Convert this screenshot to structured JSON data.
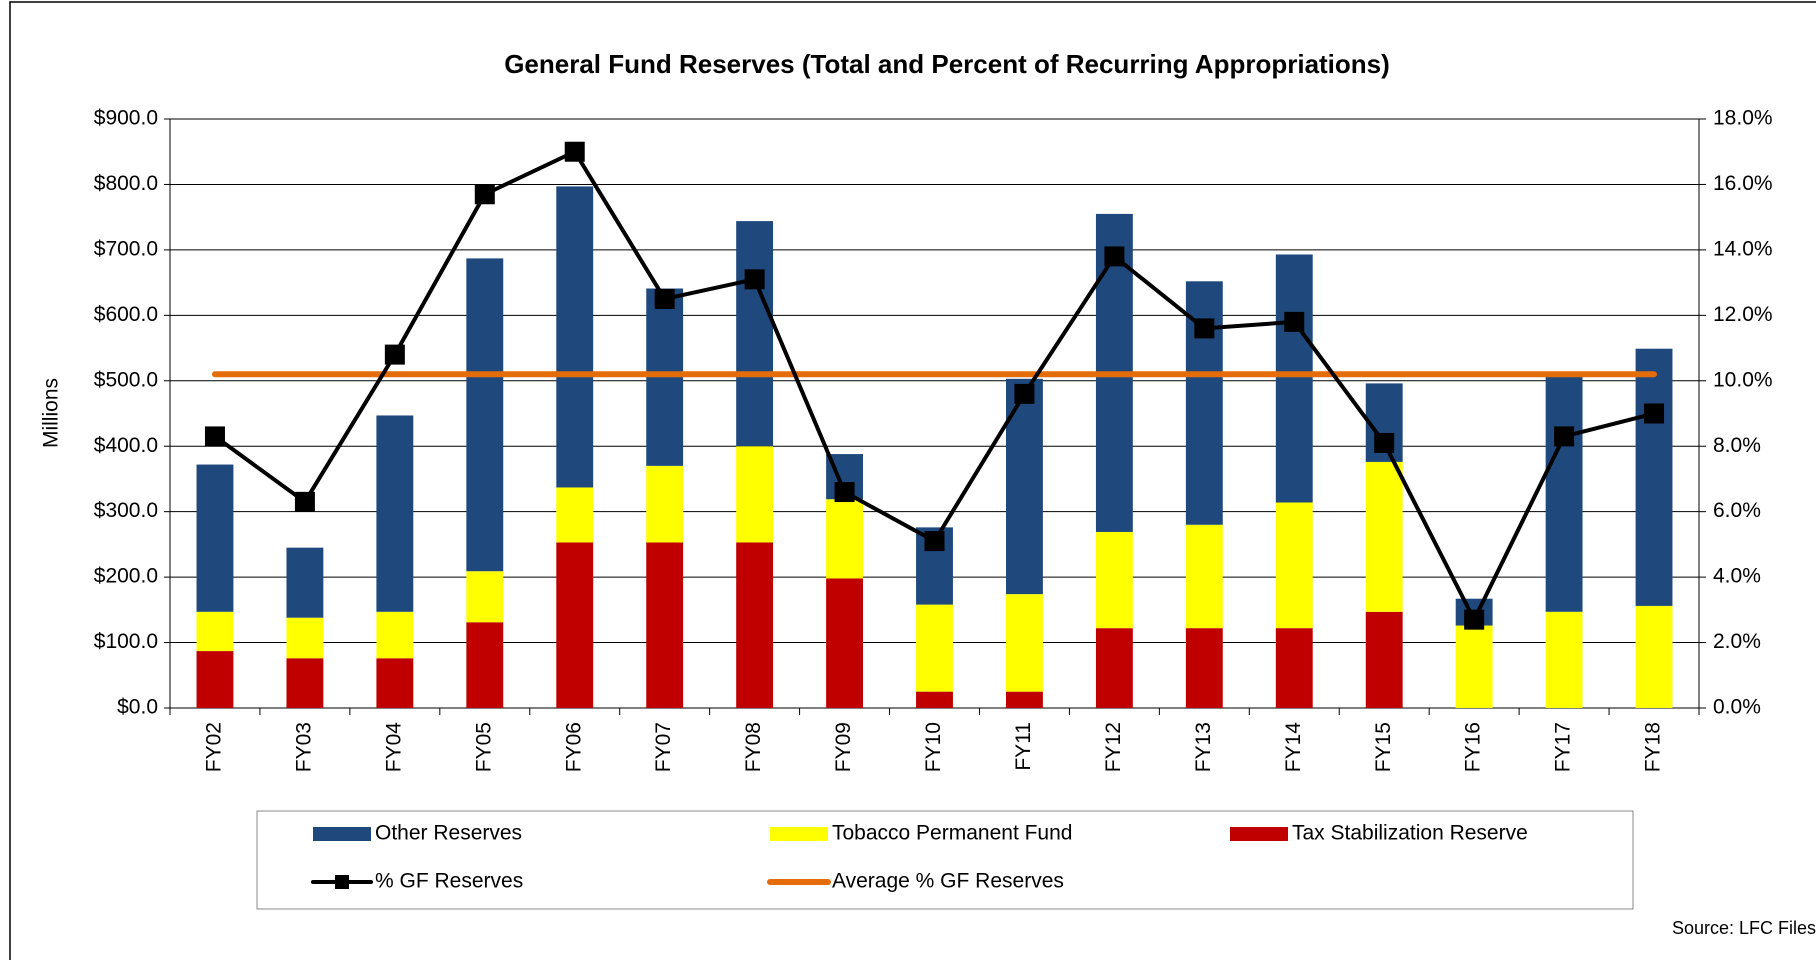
{
  "chart_data": {
    "type": "combo",
    "title": "General Fund Reserves (Total and Percent of Recurring Appropriations)",
    "y_label": "Millions",
    "source": "Source: LFC Files",
    "categories": [
      "FY02",
      "FY03",
      "FY04",
      "FY05",
      "FY06",
      "FY07",
      "FY08",
      "FY09",
      "FY10",
      "FY11",
      "FY12",
      "FY13",
      "FY14",
      "FY15",
      "FY16",
      "FY17",
      "FY18"
    ],
    "series": [
      {
        "name": "Other Reserves",
        "type": "bar",
        "color": "#1f497d",
        "values": [
          225,
          107,
          300,
          478,
          460,
          271,
          344,
          69,
          118,
          329,
          486,
          372,
          379,
          120,
          41,
          365,
          393
        ]
      },
      {
        "name": "Tobacco Permanent Fund",
        "type": "bar",
        "color": "#ffff00",
        "values": [
          60,
          62,
          71,
          78,
          84,
          117,
          147,
          121,
          133,
          149,
          147,
          158,
          192,
          229,
          126,
          147,
          156
        ]
      },
      {
        "name": "Tax Stabilization Reserve",
        "type": "bar",
        "color": "#c00000",
        "values": [
          87,
          76,
          76,
          131,
          253,
          253,
          253,
          198,
          25,
          25,
          122,
          122,
          122,
          147,
          0,
          0,
          0
        ]
      },
      {
        "name": "% GF Reserves",
        "type": "line",
        "axis": "y2",
        "color": "#000000",
        "marker": "square",
        "values": [
          8.3,
          6.3,
          10.8,
          15.7,
          17.0,
          12.5,
          13.1,
          6.6,
          5.1,
          9.6,
          13.8,
          11.6,
          11.8,
          8.1,
          2.7,
          8.3,
          9.0
        ]
      },
      {
        "name": "Average % GF Reserves",
        "type": "line",
        "axis": "y2",
        "color": "#e46c0a",
        "values": [
          10.2,
          10.2,
          10.2,
          10.2,
          10.2,
          10.2,
          10.2,
          10.2,
          10.2,
          10.2,
          10.2,
          10.2,
          10.2,
          10.2,
          10.2,
          10.2,
          10.2
        ]
      }
    ],
    "ylim": [
      0,
      900
    ],
    "yticks": [
      {
        "value": 0,
        "label": "$0.0"
      },
      {
        "value": 100,
        "label": "$100.0"
      },
      {
        "value": 200,
        "label": "$200.0"
      },
      {
        "value": 300,
        "label": "$300.0"
      },
      {
        "value": 400,
        "label": "$400.0"
      },
      {
        "value": 500,
        "label": "$500.0"
      },
      {
        "value": 600,
        "label": "$600.0"
      },
      {
        "value": 700,
        "label": "$700.0"
      },
      {
        "value": 800,
        "label": "$800.0"
      },
      {
        "value": 900,
        "label": "$900.0"
      }
    ],
    "y2lim": [
      0,
      18
    ],
    "y2ticks": [
      {
        "value": 0,
        "label": "0.0%"
      },
      {
        "value": 2,
        "label": "2.0%"
      },
      {
        "value": 4,
        "label": "4.0%"
      },
      {
        "value": 6,
        "label": "6.0%"
      },
      {
        "value": 8,
        "label": "8.0%"
      },
      {
        "value": 10,
        "label": "10.0%"
      },
      {
        "value": 12,
        "label": "12.0%"
      },
      {
        "value": 14,
        "label": "14.0%"
      },
      {
        "value": 16,
        "label": "16.0%"
      },
      {
        "value": 18,
        "label": "18.0%"
      }
    ],
    "grid": true,
    "legend": "bottom"
  }
}
